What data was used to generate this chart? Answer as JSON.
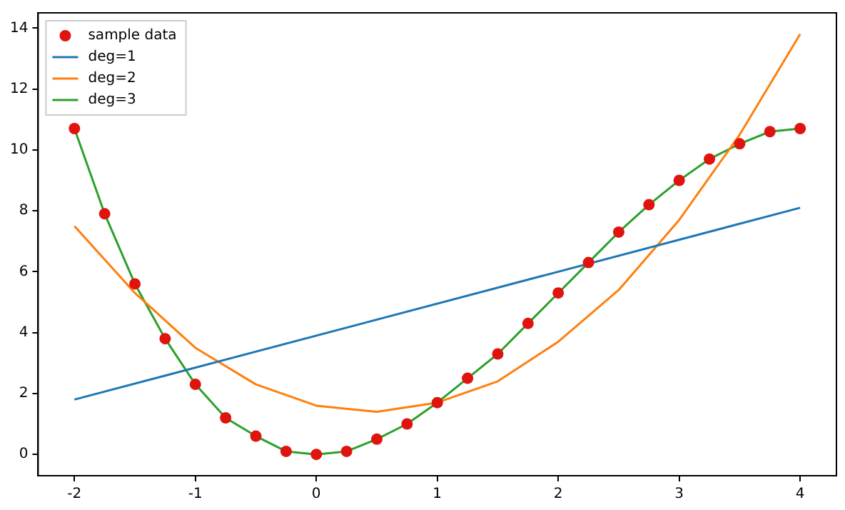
{
  "chart_data": {
    "type": "line",
    "xlim": [
      -2.3,
      4.3
    ],
    "ylim": [
      -0.7,
      14.5
    ],
    "xticks": [
      -2,
      -1,
      0,
      1,
      2,
      3,
      4
    ],
    "yticks": [
      0,
      2,
      4,
      6,
      8,
      10,
      12,
      14
    ],
    "grid": false,
    "legend": "top left",
    "series": [
      {
        "name": "sample data",
        "type": "scatter",
        "marker": "circle",
        "color": "#e0140f",
        "x": [
          -2,
          -1.75,
          -1.5,
          -1.25,
          -1,
          -0.75,
          -0.5,
          -0.25,
          0,
          0.25,
          0.5,
          0.75,
          1,
          1.25,
          1.5,
          1.75,
          2,
          2.25,
          2.5,
          2.75,
          3,
          3.25,
          3.5,
          3.75,
          4
        ],
        "values": [
          10.7,
          7.9,
          5.6,
          3.8,
          2.3,
          1.2,
          0.6,
          0.1,
          0,
          0.1,
          0.5,
          1,
          1.7,
          2.5,
          3.3,
          4.3,
          5.3,
          6.3,
          7.3,
          8.2,
          9,
          9.7,
          10.2,
          10.6,
          10.7
        ]
      },
      {
        "name": "deg=1",
        "marker": "none",
        "color": "#1f77b4",
        "x": [
          -2,
          4
        ],
        "values": [
          1.8,
          8.1
        ]
      },
      {
        "name": "deg=2",
        "marker": "none",
        "color": "#ff7f0e",
        "x": [
          -2,
          -1.5,
          -1,
          -0.5,
          0,
          0.5,
          1,
          1.5,
          2,
          2.5,
          3,
          3.5,
          4
        ],
        "values": [
          7.5,
          5.3,
          3.5,
          2.3,
          1.6,
          1.4,
          1.7,
          2.4,
          3.7,
          5.4,
          7.7,
          10.5,
          13.8
        ]
      },
      {
        "name": "deg=3",
        "marker": "none",
        "color": "#2ca02c",
        "x": [
          -2,
          -1.75,
          -1.5,
          -1.25,
          -1,
          -0.75,
          -0.5,
          -0.25,
          0,
          0.25,
          0.5,
          0.75,
          1,
          1.25,
          1.5,
          1.75,
          2,
          2.25,
          2.5,
          2.75,
          3,
          3.25,
          3.5,
          3.75,
          4
        ],
        "values": [
          10.7,
          7.9,
          5.6,
          3.8,
          2.3,
          1.2,
          0.6,
          0.1,
          0,
          0.1,
          0.5,
          1,
          1.7,
          2.5,
          3.3,
          4.3,
          5.3,
          6.3,
          7.3,
          8.2,
          9,
          9.7,
          10.2,
          10.6,
          10.7
        ]
      }
    ]
  }
}
